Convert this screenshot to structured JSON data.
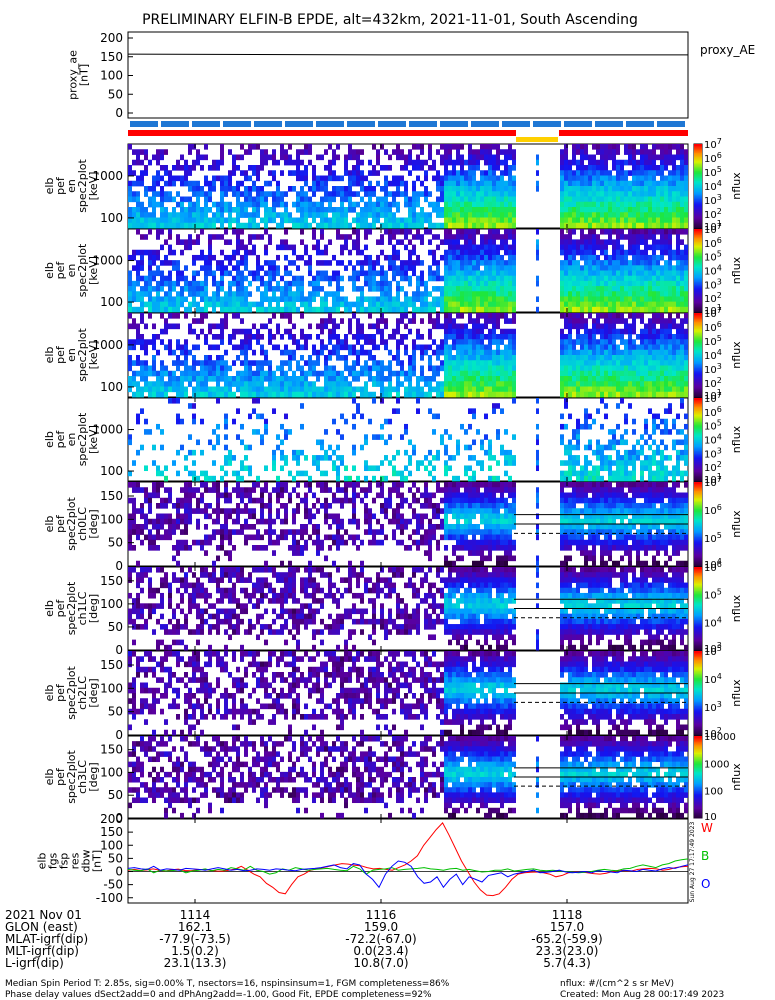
{
  "title": "PRELIMINARY ELFIN-B EPDE, alt=432km, 2021-11-01, South Ascending",
  "top_panel": {
    "ylabel_lines": [
      "proxy_ae",
      "[nT]"
    ],
    "yticks": [
      "200",
      "150",
      "100",
      "50",
      "0"
    ],
    "legend": "proxy_AE"
  },
  "spec_panels": [
    {
      "ylabel_lines": [
        "elb",
        "pef",
        "en",
        "spec2plot",
        "[keV]"
      ],
      "yticks": [
        "1000",
        "100"
      ],
      "cbar_ticks": [
        "10^7",
        "10^6",
        "10^5",
        "10^4",
        "10^3",
        "10^2",
        "10^1"
      ],
      "cbar_label": "nflux"
    },
    {
      "ylabel_lines": [
        "elb",
        "pef",
        "en",
        "spec2plot",
        "[keV]"
      ],
      "yticks": [
        "1000",
        "100"
      ],
      "cbar_ticks": [
        "10^7",
        "10^6",
        "10^5",
        "10^4",
        "10^3",
        "10^2",
        "10^1"
      ],
      "cbar_label": "nflux"
    },
    {
      "ylabel_lines": [
        "elb",
        "pef",
        "en",
        "spec2plot",
        "[keV]"
      ],
      "yticks": [
        "1000",
        "100"
      ],
      "cbar_ticks": [
        "10^7",
        "10^6",
        "10^5",
        "10^4",
        "10^3",
        "10^2",
        "10^1"
      ],
      "cbar_label": "nflux"
    },
    {
      "ylabel_lines": [
        "elb",
        "pef",
        "en",
        "spec2plot",
        "[keV]"
      ],
      "yticks": [
        "1000",
        "100"
      ],
      "cbar_ticks": [
        "10^7",
        "10^6",
        "10^5",
        "10^4",
        "10^3",
        "10^2",
        "10^1"
      ],
      "cbar_label": "nflux"
    }
  ],
  "pa_panels": [
    {
      "ylabel_lines": [
        "elb",
        "pef",
        "spec2plot",
        "ch0LC",
        "[deg]"
      ],
      "yticks": [
        "150",
        "100",
        "50",
        "0"
      ],
      "cbar_ticks": [
        "10^7",
        "10^6",
        "10^5",
        "10^4"
      ],
      "cbar_label": "nflux"
    },
    {
      "ylabel_lines": [
        "elb",
        "pef",
        "spec2plot",
        "ch1LC",
        "[deg]"
      ],
      "yticks": [
        "150",
        "100",
        "50",
        "0"
      ],
      "cbar_ticks": [
        "10^6",
        "10^5",
        "10^4",
        "10^3"
      ],
      "cbar_label": "nflux"
    },
    {
      "ylabel_lines": [
        "elb",
        "pef",
        "spec2plot",
        "ch2LC",
        "[deg]"
      ],
      "yticks": [
        "150",
        "100",
        "50",
        "0"
      ],
      "cbar_ticks": [
        "10^5",
        "10^4",
        "10^3",
        "10^2"
      ],
      "cbar_label": "nflux"
    },
    {
      "ylabel_lines": [
        "elb",
        "pef",
        "spec2plot",
        "ch3LC",
        "[deg]"
      ],
      "yticks": [
        "150",
        "100",
        "50",
        "0"
      ],
      "cbar_ticks": [
        "10000",
        "1000",
        "100",
        "10"
      ],
      "cbar_label": "nflux"
    }
  ],
  "mag_panel": {
    "ylabel_lines": [
      "elb",
      "fgs",
      "fsp",
      "res",
      "dbw",
      "[nT]"
    ],
    "yticks": [
      "200",
      "150",
      "100",
      "50",
      "0",
      "-50",
      "-100"
    ],
    "legend": [
      "W",
      "B",
      "O"
    ],
    "side_note": "Sun Aug 27 17:17:49 2023"
  },
  "footer": {
    "rows": [
      [
        "2021 Nov 01",
        "1114",
        "1116",
        "1118"
      ],
      [
        "GLON (east)",
        "162.1",
        "159.0",
        "157.0"
      ],
      [
        "MLAT-igrf(dip)",
        "-77.9(-73.5)",
        "-72.2(-67.0)",
        "-65.2(-59.9)"
      ],
      [
        "MLT-igrf(dip)",
        "1.5(0.2)",
        "0.0(23.4)",
        "23.3(23.0)"
      ],
      [
        "L-igrf(dip)",
        "23.1(13.3)",
        "10.8(7.0)",
        "5.7(4.3)"
      ]
    ],
    "note1": "Median Spin Period T: 2.85s, sig=0.00% T, nsectors=16, nspinsinsum=1, FGM completeness=86%",
    "note2": "Phase delay values dSect2add=0 and dPhAng2add=-1.00, Good Fit, EPDE completeness=92%",
    "nflux_note": "nflux: #/(cm^2 s sr MeV)",
    "created": "Created: Mon Aug 28 00:17:49 2023"
  },
  "colors": {
    "blue_bar": "#1f77d4",
    "red_bar": "#ff0000",
    "yellow_bar": "#ffd000",
    "W": "#ff0000",
    "B": "#00c000",
    "O": "#0000ff"
  },
  "chart_data": {
    "type": "heatmap",
    "title": "PRELIMINARY ELFIN-B EPDE, alt=432km, 2021-11-01, South Ascending",
    "x_ticks": [
      "1114",
      "1116",
      "1118"
    ],
    "proxy_ae": {
      "ylim": [
        0,
        200
      ],
      "values": [
        157,
        155,
        155
      ]
    },
    "energy_ylim_keV": [
      60,
      6000
    ],
    "pitch_ylim_deg": [
      0,
      180
    ],
    "mag": {
      "type": "line",
      "ylim": [
        -120,
        200
      ],
      "series": [
        {
          "name": "W",
          "values": [
            5,
            8,
            4,
            6,
            10,
            5,
            2,
            7,
            9,
            4,
            3,
            6,
            8,
            5,
            2,
            1,
            5,
            9,
            20,
            5,
            -10,
            -20,
            -45,
            -60,
            -80,
            -85,
            -50,
            -20,
            -10,
            5,
            10,
            15,
            20,
            25,
            30,
            28,
            24,
            22,
            15,
            10,
            12,
            8,
            5,
            15,
            25,
            40,
            60,
            100,
            130,
            160,
            185,
            140,
            90,
            40,
            0,
            -40,
            -70,
            -90,
            -92,
            -85,
            -60,
            -30,
            -10,
            -5,
            -3,
            -2,
            -5,
            -10,
            -20,
            -15,
            -5,
            -3,
            -2,
            -5,
            -8,
            -10,
            -7,
            0,
            5,
            3,
            2,
            8,
            10,
            12,
            10,
            5,
            8,
            15,
            18,
            20
          ]
        },
        {
          "name": "B",
          "values": [
            8,
            5,
            3,
            10,
            -5,
            5,
            2,
            4,
            6,
            -5,
            2,
            5,
            10,
            3,
            8,
            5,
            15,
            10,
            5,
            20,
            5,
            0,
            -10,
            -5,
            10,
            5,
            15,
            10,
            5,
            8,
            10,
            12,
            8,
            5,
            3,
            20,
            10,
            -10,
            5,
            8,
            10,
            15,
            5,
            8,
            10,
            12,
            15,
            10,
            8,
            5,
            10,
            12,
            5,
            8,
            3,
            -2,
            0,
            5,
            5,
            10,
            2,
            5,
            8,
            10,
            5,
            3,
            5,
            2,
            0,
            -3,
            -5,
            -3,
            0,
            5,
            8,
            5,
            3,
            10,
            12,
            20,
            25,
            20,
            15,
            25,
            30,
            40,
            45,
            48
          ]
        },
        {
          "name": "O",
          "values": [
            12,
            15,
            10,
            8,
            20,
            5,
            10,
            8,
            5,
            12,
            10,
            8,
            5,
            10,
            15,
            10,
            5,
            8,
            3,
            5,
            10,
            8,
            5,
            10,
            8,
            5,
            3,
            8,
            10,
            12,
            15,
            20,
            25,
            15,
            10,
            30,
            25,
            -10,
            -30,
            -60,
            -10,
            20,
            40,
            35,
            20,
            -20,
            -45,
            -40,
            -20,
            -60,
            -30,
            -10,
            -50,
            -20,
            -30,
            -40,
            -15,
            -10,
            -5,
            -20,
            -10,
            -5,
            0,
            5,
            -5,
            -3,
            0,
            5,
            -2,
            -5,
            -3,
            0,
            -5,
            3,
            0,
            -2,
            -5,
            5,
            3,
            0,
            8,
            5,
            2,
            10,
            15,
            12,
            20,
            25
          ]
        }
      ]
    }
  }
}
